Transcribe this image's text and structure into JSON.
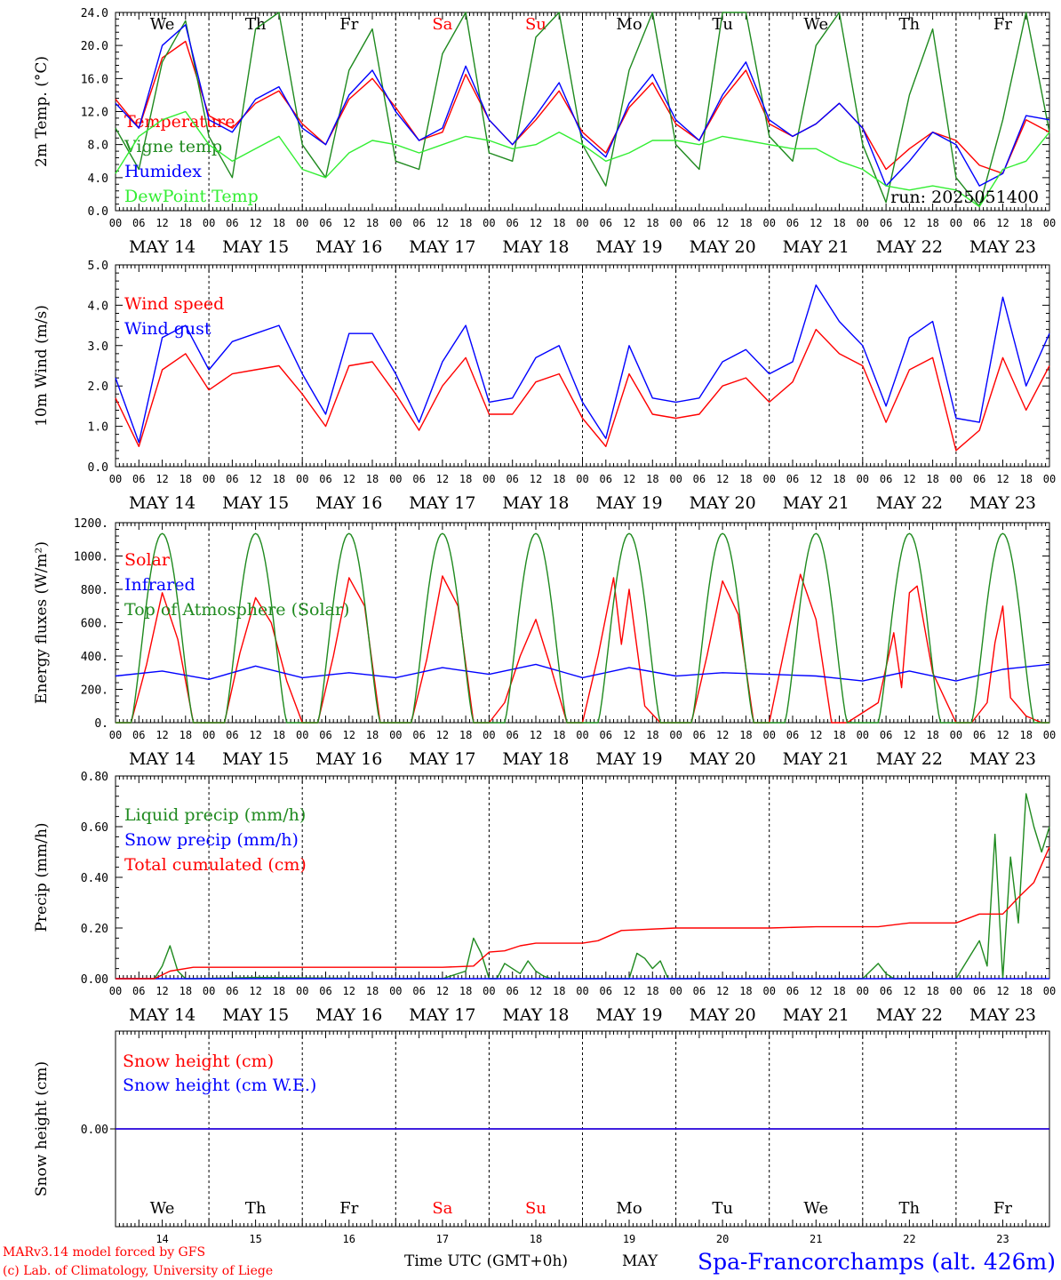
{
  "colors": {
    "red": "#ff0000",
    "darkgreen": "#1f8a1f",
    "blue": "#0000ff",
    "lightgreen": "#33ee33"
  },
  "x_axis": {
    "hour_labels": [
      "00",
      "06",
      "12",
      "18"
    ],
    "final_hour_label": "00",
    "date_labels": [
      "MAY 14",
      "MAY 15",
      "MAY 16",
      "MAY 17",
      "MAY 18",
      "MAY 19",
      "MAY 20",
      "MAY 21",
      "MAY 22",
      "MAY 23"
    ],
    "weekdays": [
      "We",
      "Th",
      "Fr",
      "Sa",
      "Su",
      "Mo",
      "Tu",
      "We",
      "Th",
      "Fr"
    ],
    "weekend_days": [
      "Sa",
      "Su"
    ],
    "day_numbers": [
      "14",
      "15",
      "16",
      "17",
      "18",
      "19",
      "20",
      "21",
      "22",
      "23"
    ],
    "bottom_label": "Time UTC (GMT+0h)",
    "bottom_month": "MAY"
  },
  "footer": {
    "credit1": "MARv3.14 model forced by GFS",
    "credit2": "(c) Lab. of Climatology, University of Liege",
    "station": "Spa-Francorchamps (alt. 426m)"
  },
  "chart_data": [
    {
      "type": "line",
      "ylabel": "2m Temp. (°C)",
      "ylim": [
        0,
        24
      ],
      "ytick_labels": [
        "0.0",
        "4.0",
        "8.0",
        "12.0",
        "16.0",
        "20.0",
        "24.0"
      ],
      "annotation": "run: 2025051400",
      "x_unit": "hours since 2025-05-14 00 UTC",
      "series": [
        {
          "name": "Temperature",
          "color": "red",
          "x": [
            0,
            6,
            12,
            18,
            24,
            30,
            36,
            42,
            48,
            54,
            60,
            66,
            72,
            78,
            84,
            90,
            96,
            102,
            108,
            114,
            120,
            126,
            132,
            138,
            144,
            150,
            156,
            162,
            168,
            174,
            180,
            186,
            192,
            198,
            204,
            210,
            216,
            222,
            228,
            234,
            240
          ],
          "y": [
            13.5,
            10,
            18.5,
            20.5,
            11.5,
            10,
            13,
            14.5,
            10.5,
            8,
            13.5,
            16,
            12.5,
            8.5,
            9.5,
            16.5,
            11,
            8,
            11,
            14.5,
            9.5,
            7,
            12.5,
            15.5,
            10.5,
            8.5,
            13.5,
            17,
            10.5,
            9,
            10.5,
            13,
            10,
            5,
            7.5,
            9.5,
            8.5,
            5.5,
            4.5,
            11,
            9.5
          ]
        },
        {
          "name": "Vigne temp",
          "color": "darkgreen",
          "x": [
            0,
            6,
            12,
            18,
            24,
            30,
            36,
            42,
            48,
            54,
            60,
            66,
            72,
            78,
            84,
            90,
            96,
            102,
            108,
            114,
            120,
            126,
            132,
            138,
            144,
            150,
            156,
            162,
            168,
            174,
            180,
            186,
            192,
            198,
            204,
            210,
            216,
            222,
            228,
            234,
            240
          ],
          "y": [
            10,
            5,
            18,
            23,
            9,
            4,
            22,
            24,
            8,
            4,
            17,
            22,
            6,
            5,
            19,
            24,
            7,
            6,
            21,
            24,
            8,
            3,
            17,
            24,
            8,
            5,
            24,
            24,
            9,
            6,
            20,
            24,
            8,
            1,
            14,
            22,
            4,
            0.5,
            11,
            24,
            9.5
          ]
        },
        {
          "name": "Humidex",
          "color": "blue",
          "x": [
            0,
            6,
            12,
            18,
            24,
            30,
            36,
            42,
            48,
            54,
            60,
            66,
            72,
            78,
            84,
            90,
            96,
            102,
            108,
            114,
            120,
            126,
            132,
            138,
            144,
            150,
            156,
            162,
            168,
            174,
            180,
            186,
            192,
            198,
            204,
            210,
            216,
            222,
            228,
            234,
            240
          ],
          "y": [
            13,
            10,
            20,
            22.5,
            11,
            9.5,
            13.5,
            15,
            10,
            8,
            14,
            17,
            12,
            8.5,
            10,
            17.5,
            11,
            8,
            11.5,
            15.5,
            9,
            6.5,
            13,
            16.5,
            11,
            8.5,
            14,
            18,
            11,
            9,
            10.5,
            13,
            10,
            3,
            6,
            9.5,
            8,
            3,
            4.5,
            11.5,
            11
          ]
        },
        {
          "name": "DewPoint Temp",
          "color": "lightgreen",
          "x": [
            0,
            6,
            12,
            18,
            24,
            30,
            36,
            42,
            48,
            54,
            60,
            66,
            72,
            78,
            84,
            90,
            96,
            102,
            108,
            114,
            120,
            126,
            132,
            138,
            144,
            150,
            156,
            162,
            168,
            174,
            180,
            186,
            192,
            198,
            204,
            210,
            216,
            222,
            228,
            234,
            240
          ],
          "y": [
            4.5,
            9,
            11,
            12,
            8,
            6,
            7.5,
            9,
            5,
            4,
            7,
            8.5,
            8,
            7,
            8,
            9,
            8.5,
            7.5,
            8,
            9.5,
            8,
            6,
            7,
            8.5,
            8.5,
            8,
            9,
            8.5,
            8,
            7.5,
            7.5,
            6,
            5,
            3,
            2.5,
            3,
            2.5,
            0.5,
            5,
            6,
            9.5
          ]
        }
      ]
    },
    {
      "type": "line",
      "ylabel": "10m Wind (m/s)",
      "ylim": [
        0,
        5
      ],
      "ytick_labels": [
        "0.0",
        "1.0",
        "2.0",
        "3.0",
        "4.0",
        "5.0"
      ],
      "series": [
        {
          "name": "Wind speed",
          "color": "red",
          "x": [
            0,
            6,
            12,
            18,
            24,
            30,
            36,
            42,
            48,
            54,
            60,
            66,
            72,
            78,
            84,
            90,
            96,
            102,
            108,
            114,
            120,
            126,
            132,
            138,
            144,
            150,
            156,
            162,
            168,
            174,
            180,
            186,
            192,
            198,
            204,
            210,
            216,
            222,
            228,
            234,
            240
          ],
          "y": [
            1.7,
            0.5,
            2.4,
            2.8,
            1.9,
            2.3,
            2.4,
            2.5,
            1.8,
            1.0,
            2.5,
            2.6,
            1.8,
            0.9,
            2.0,
            2.7,
            1.3,
            1.3,
            2.1,
            2.3,
            1.2,
            0.5,
            2.3,
            1.3,
            1.2,
            1.3,
            2.0,
            2.2,
            1.6,
            2.1,
            3.4,
            2.8,
            2.5,
            1.1,
            2.4,
            2.7,
            0.4,
            0.9,
            2.7,
            1.4,
            2.5
          ]
        },
        {
          "name": "Wind gust",
          "color": "blue",
          "x": [
            0,
            6,
            12,
            18,
            24,
            30,
            36,
            42,
            48,
            54,
            60,
            66,
            72,
            78,
            84,
            90,
            96,
            102,
            108,
            114,
            120,
            126,
            132,
            138,
            144,
            150,
            156,
            162,
            168,
            174,
            180,
            186,
            192,
            198,
            204,
            210,
            216,
            222,
            228,
            234,
            240
          ],
          "y": [
            2.2,
            0.6,
            3.2,
            3.5,
            2.4,
            3.1,
            3.3,
            3.5,
            2.3,
            1.3,
            3.3,
            3.3,
            2.3,
            1.1,
            2.6,
            3.5,
            1.6,
            1.7,
            2.7,
            3.0,
            1.6,
            0.7,
            3.0,
            1.7,
            1.6,
            1.7,
            2.6,
            2.9,
            2.3,
            2.6,
            4.5,
            3.6,
            3.0,
            1.5,
            3.2,
            3.6,
            1.2,
            1.1,
            4.2,
            2.0,
            3.3
          ]
        }
      ]
    },
    {
      "type": "line",
      "ylabel": "Energy fluxes (W/m²)",
      "ylim": [
        0,
        1200
      ],
      "ytick_labels": [
        "0.",
        "200.",
        "400.",
        "600.",
        "800.",
        "1000.",
        "1200."
      ],
      "series": [
        {
          "name": "Solar",
          "color": "red",
          "x": [
            0,
            4,
            8,
            12,
            16,
            20,
            28,
            32,
            36,
            40,
            44,
            48,
            52,
            56,
            60,
            64,
            68,
            76,
            80,
            84,
            88,
            92,
            96,
            100,
            104,
            108,
            112,
            116,
            120,
            124,
            128,
            130,
            132,
            134,
            136,
            140,
            148,
            152,
            156,
            160,
            164,
            168,
            172,
            176,
            180,
            184,
            188,
            196,
            200,
            202,
            204,
            206,
            210,
            216,
            220,
            224,
            226,
            228,
            230,
            234,
            238,
            240
          ],
          "y": [
            0,
            0,
            350,
            780,
            500,
            0,
            0,
            420,
            750,
            600,
            250,
            0,
            0,
            400,
            870,
            700,
            0,
            0,
            380,
            880,
            700,
            0,
            0,
            120,
            400,
            620,
            320,
            0,
            0,
            400,
            870,
            470,
            800,
            450,
            100,
            0,
            0,
            400,
            850,
            650,
            0,
            0,
            450,
            890,
            620,
            0,
            0,
            120,
            540,
            210,
            780,
            820,
            300,
            0,
            0,
            120,
            480,
            700,
            150,
            40,
            0,
            0
          ]
        },
        {
          "name": "Infrared",
          "color": "blue",
          "x": [
            0,
            12,
            24,
            36,
            48,
            60,
            72,
            84,
            96,
            108,
            120,
            132,
            144,
            156,
            168,
            180,
            192,
            204,
            216,
            228,
            240
          ],
          "y": [
            280,
            310,
            260,
            340,
            270,
            300,
            270,
            330,
            290,
            350,
            270,
            330,
            280,
            300,
            290,
            280,
            250,
            310,
            250,
            320,
            350
          ]
        },
        {
          "name": "Top of Atmosphere (Solar)",
          "color": "darkgreen",
          "day_peak": 1135,
          "daylight_hours": [
            4,
            20
          ]
        }
      ]
    },
    {
      "type": "line",
      "ylabel": "Precip (mm/h)",
      "ylim": [
        0,
        0.8
      ],
      "ytick_labels": [
        "0.00",
        "0.20",
        "0.40",
        "0.60",
        "0.80"
      ],
      "series": [
        {
          "name": "Liquid precip (mm/h)",
          "color": "darkgreen",
          "x": [
            0,
            10,
            12,
            14,
            16,
            18,
            20,
            36,
            72,
            84,
            90,
            92,
            94,
            96,
            98,
            100,
            104,
            106,
            108,
            110,
            112,
            114,
            116,
            120,
            132,
            134,
            136,
            138,
            140,
            142,
            144,
            192,
            196,
            198,
            200,
            216,
            222,
            224,
            226,
            228,
            230,
            232,
            234,
            236,
            238,
            240
          ],
          "y": [
            0,
            0,
            0.05,
            0.13,
            0.03,
            0,
            0,
            0.005,
            0,
            0,
            0.03,
            0.16,
            0.1,
            0,
            0,
            0.06,
            0.02,
            0.07,
            0.03,
            0.01,
            0,
            0,
            0,
            0,
            0,
            0.1,
            0.08,
            0.04,
            0.07,
            0,
            0,
            0,
            0.06,
            0.02,
            0,
            0,
            0.15,
            0.05,
            0.57,
            0,
            0.48,
            0.22,
            0.73,
            0.6,
            0.5,
            0.6
          ]
        },
        {
          "name": "Snow precip (mm/h)",
          "color": "blue",
          "x": [
            0,
            240
          ],
          "y": [
            0,
            0
          ]
        },
        {
          "name": "Total cumulated (cm)",
          "color": "red",
          "x": [
            0,
            10,
            14,
            20,
            84,
            92,
            96,
            100,
            104,
            108,
            120,
            124,
            130,
            144,
            168,
            180,
            196,
            204,
            216,
            222,
            228,
            232,
            236,
            240
          ],
          "y": [
            0,
            0,
            0.03,
            0.045,
            0.045,
            0.05,
            0.105,
            0.11,
            0.13,
            0.14,
            0.14,
            0.15,
            0.19,
            0.2,
            0.2,
            0.205,
            0.205,
            0.22,
            0.22,
            0.255,
            0.255,
            0.32,
            0.38,
            0.52
          ]
        }
      ]
    },
    {
      "type": "line",
      "ylabel": "Snow height (cm)",
      "ytick_labels": [
        "0.00"
      ],
      "series": [
        {
          "name": "Snow height (cm)",
          "color": "red",
          "x": [
            0,
            240
          ],
          "y": [
            0,
            0
          ]
        },
        {
          "name": "Snow height (cm W.E.)",
          "color": "blue",
          "x": [
            0,
            240
          ],
          "y": [
            0,
            0
          ]
        }
      ]
    }
  ]
}
